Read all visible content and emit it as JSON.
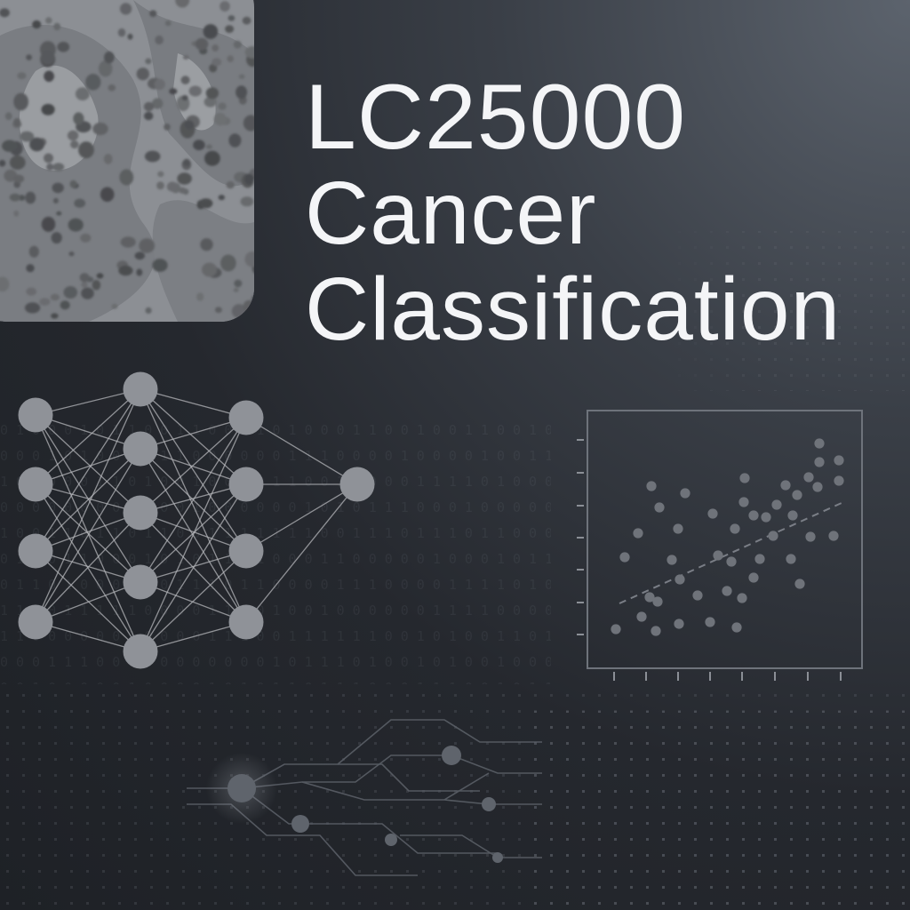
{
  "title": {
    "line1": "LC25000",
    "line2": "Cancer",
    "line3": "Classification"
  },
  "colors": {
    "background": "#25282e",
    "title_text": "#f4f5f7",
    "graphic_gray": "#8a8d92",
    "node_fill": "#8f9298"
  },
  "icons": {
    "histology_tile": "microscopy-image",
    "network": "neural-network-icon",
    "scatter": "scatter-plot-icon",
    "circuit": "circuit-traces-icon",
    "binary": "binary-code-pattern"
  }
}
